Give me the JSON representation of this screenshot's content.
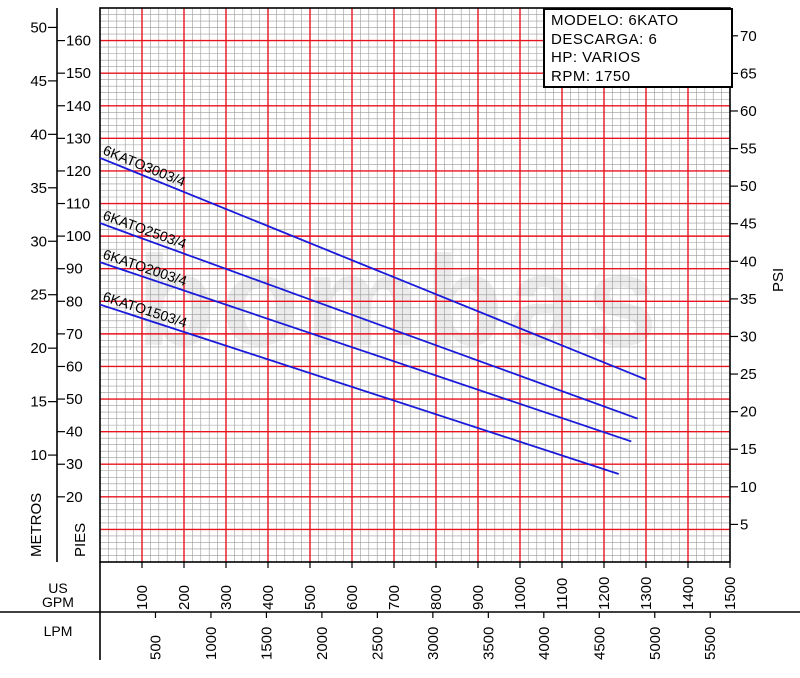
{
  "info_box": {
    "modelo": "MODELO:  6KATO",
    "descarga": "DESCARGA:  6",
    "hp": "HP:  VARIOS",
    "rpm": "RPM:  1750"
  },
  "colors": {
    "major_grid": "#e8131e",
    "minor_grid": "#9a9a9a",
    "curve": "#1a1adb",
    "axis": "#000000"
  },
  "watermark": "bombas",
  "chart_data": {
    "type": "line",
    "x": {
      "label_top": "US GPM",
      "range": [
        0,
        1500
      ],
      "ticks": [
        "100",
        "200",
        "300",
        "400",
        "500",
        "600",
        "700",
        "800",
        "900",
        "1000",
        "1100",
        "1200",
        "1300",
        "1400",
        "1500"
      ],
      "secondary": {
        "label": "LPM",
        "ticks": [
          "500",
          "1000",
          "1500",
          "2000",
          "2500",
          "3000",
          "3500",
          "4000",
          "4500",
          "5000",
          "5500"
        ]
      }
    },
    "y": {
      "label": "PIES",
      "range": [
        0,
        170
      ],
      "ticks": [
        "20",
        "30",
        "40",
        "50",
        "60",
        "70",
        "80",
        "90",
        "100",
        "110",
        "120",
        "130",
        "140",
        "150",
        "160"
      ],
      "metros": {
        "label": "METROS",
        "ticks": [
          "10",
          "15",
          "20",
          "25",
          "30",
          "35",
          "40",
          "45",
          "50"
        ]
      },
      "psi": {
        "label": "PSI",
        "ticks": [
          "5",
          "10",
          "15",
          "20",
          "25",
          "30",
          "35",
          "40",
          "45",
          "50",
          "55",
          "60",
          "65",
          "70"
        ]
      }
    },
    "grid": true,
    "series": [
      {
        "name": "6KATO3003/4",
        "x": [
          0,
          1300
        ],
        "y": [
          124,
          56
        ]
      },
      {
        "name": "6KATO2503/4",
        "x": [
          0,
          1280
        ],
        "y": [
          104,
          44
        ]
      },
      {
        "name": "6KATO2003/4",
        "x": [
          0,
          1265
        ],
        "y": [
          92,
          37
        ]
      },
      {
        "name": "6KATO1503/4",
        "x": [
          0,
          1235
        ],
        "y": [
          79,
          27
        ]
      }
    ]
  }
}
